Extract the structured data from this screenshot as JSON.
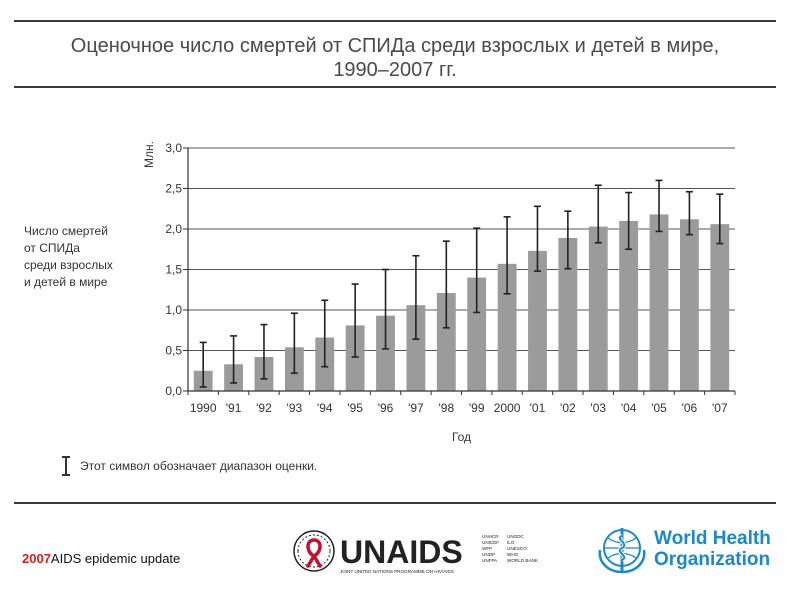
{
  "header": {
    "title_line1": "Оценочное число смертей от СПИДа среди взрослых и детей в мире,",
    "title_line2": "1990–2007 гг."
  },
  "side_label": [
    "Число смертей",
    "от СПИДа",
    "среди взрослых",
    "и детей в мире"
  ],
  "legend": {
    "text": "Этот символ обозначает диапазон оценки."
  },
  "footer": {
    "year": "2007",
    "report": "AIDS epidemic update",
    "unaids_word": "UNAIDS",
    "unaids_subtitle": "JOINT UNITED NATIONS PROGRAMME ON HIV/AIDS",
    "unaids_cosponsors_col1": [
      "UNHCR",
      "UNICEF",
      "WFP",
      "UNDP",
      "UNFPA"
    ],
    "unaids_cosponsors_col2": [
      "UNODC",
      "ILO",
      "UNESCO",
      "WHO",
      "WORLD BANK"
    ],
    "who_line1": "World Health",
    "who_line2": "Organization"
  },
  "colors": {
    "bar": "#9b9b9b",
    "grid": "#555555",
    "year_highlight": "#d81e1e",
    "unaids_red": "#c8102e",
    "who_blue": "#1d88c8"
  },
  "chart_data": {
    "type": "bar",
    "ylabel": "Млн.",
    "xlabel": "Год",
    "ylim": [
      0,
      3
    ],
    "yticks": [
      "0,0",
      "0,5",
      "1,0",
      "1,5",
      "2,0",
      "2,5",
      "3,0"
    ],
    "grid": true,
    "categories": [
      "1990",
      "'91",
      "'92",
      "'93",
      "'94",
      "'95",
      "'96",
      "'97",
      "'98",
      "'99",
      "2000",
      "'01",
      "'02",
      "'03",
      "'04",
      "'05",
      "'06",
      "'07"
    ],
    "values": [
      0.25,
      0.33,
      0.42,
      0.54,
      0.66,
      0.81,
      0.93,
      1.06,
      1.21,
      1.4,
      1.57,
      1.73,
      1.89,
      2.03,
      2.1,
      2.18,
      2.12,
      2.06
    ],
    "error_low": [
      0.05,
      0.1,
      0.15,
      0.22,
      0.3,
      0.42,
      0.52,
      0.64,
      0.78,
      0.97,
      1.2,
      1.48,
      1.51,
      1.83,
      1.75,
      1.97,
      1.93,
      1.82
    ],
    "error_high": [
      0.6,
      0.68,
      0.82,
      0.96,
      1.12,
      1.32,
      1.5,
      1.67,
      1.85,
      2.01,
      2.15,
      2.28,
      2.22,
      2.54,
      2.45,
      2.6,
      2.46,
      2.43
    ]
  }
}
